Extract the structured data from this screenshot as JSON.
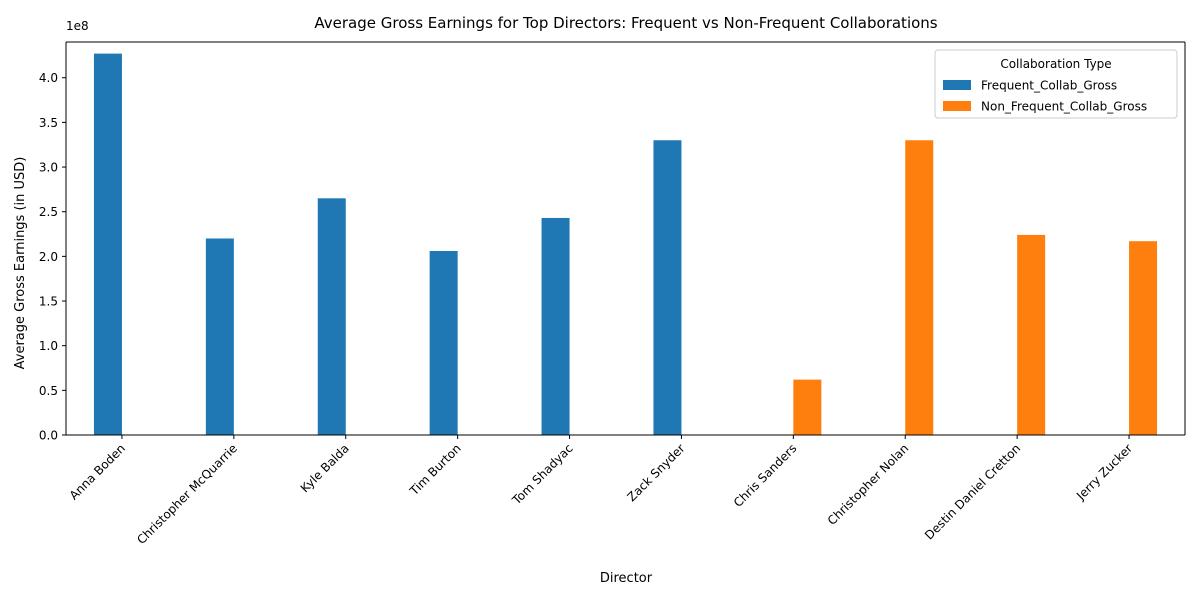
{
  "chart_data": {
    "type": "bar",
    "title": "Average Gross Earnings for Top Directors: Frequent vs Non-Frequent Collaborations",
    "xlabel": "Director",
    "ylabel": "Average Gross Earnings (in USD)",
    "y_exponent_label": "1e8",
    "ylim": [
      0,
      440000000.0
    ],
    "yticks": [
      0,
      50000000.0,
      100000000.0,
      150000000.0,
      200000000.0,
      250000000.0,
      300000000.0,
      350000000.0,
      400000000.0
    ],
    "ytick_labels": [
      "0.0",
      "0.5",
      "1.0",
      "1.5",
      "2.0",
      "2.5",
      "3.0",
      "3.5",
      "4.0"
    ],
    "grid": false,
    "legend": {
      "title": "Collaboration Type",
      "position": "top-right"
    },
    "categories": [
      "Anna Boden",
      "Christopher McQuarrie",
      "Kyle Balda",
      "Tim Burton",
      "Tom Shadyac",
      "Zack Snyder",
      "Chris Sanders",
      "Christopher Nolan",
      "Destin Daniel Cretton",
      "Jerry Zucker"
    ],
    "series": [
      {
        "name": "Frequent_Collab_Gross",
        "color": "#1f77b4",
        "values": [
          427000000,
          220000000,
          265000000,
          206000000,
          243000000,
          330000000,
          null,
          null,
          null,
          null
        ]
      },
      {
        "name": "Non_Frequent_Collab_Gross",
        "color": "#ff7f0e",
        "values": [
          null,
          null,
          null,
          null,
          null,
          null,
          62000000,
          330000000,
          224000000,
          217000000
        ]
      }
    ]
  }
}
